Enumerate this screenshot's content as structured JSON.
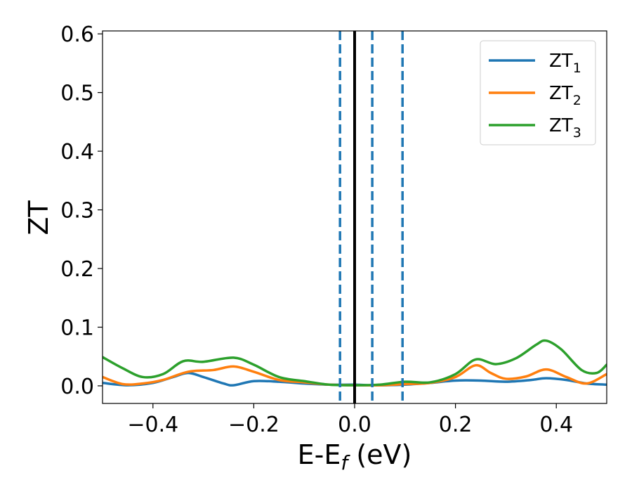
{
  "chart_data": {
    "type": "line",
    "xlabel_main": "E-E",
    "xlabel_sub": "f",
    "xlabel_unit": " (eV)",
    "ylabel": "ZT",
    "xlim": [
      -0.5,
      0.5
    ],
    "ylim": [
      -0.03,
      0.605
    ],
    "x_ticks": [
      -0.4,
      -0.2,
      0.0,
      0.2,
      0.4
    ],
    "x_tick_labels": [
      "−0.4",
      "−0.2",
      "0.0",
      "0.2",
      "0.4"
    ],
    "y_ticks": [
      0.0,
      0.1,
      0.2,
      0.3,
      0.4,
      0.5,
      0.6
    ],
    "y_tick_labels": [
      "0.0",
      "0.1",
      "0.2",
      "0.3",
      "0.4",
      "0.5",
      "0.6"
    ],
    "grid": false,
    "legend_position": "top-right",
    "vertical_lines": [
      {
        "x": 0.0,
        "style": "solid",
        "color": "#000000"
      },
      {
        "x": -0.029,
        "style": "dashed",
        "color": "#1f77b4"
      },
      {
        "x": 0.035,
        "style": "dashed",
        "color": "#1f77b4"
      },
      {
        "x": 0.095,
        "style": "dashed",
        "color": "#1f77b4"
      }
    ],
    "series": [
      {
        "name": "ZT",
        "sub": "1",
        "color": "#1f77b4",
        "x": [
          -0.5,
          -0.45,
          -0.4,
          -0.36,
          -0.33,
          -0.3,
          -0.26,
          -0.24,
          -0.2,
          -0.15,
          -0.1,
          -0.05,
          0.0,
          0.03,
          0.06,
          0.1,
          0.15,
          0.2,
          0.25,
          0.3,
          0.35,
          0.38,
          0.42,
          0.46,
          0.5
        ],
        "y": [
          0.005,
          0.001,
          0.005,
          0.015,
          0.022,
          0.015,
          0.004,
          0.001,
          0.008,
          0.007,
          0.004,
          0.002,
          0.002,
          0.001,
          0.001,
          0.002,
          0.005,
          0.009,
          0.009,
          0.007,
          0.01,
          0.013,
          0.01,
          0.004,
          0.002
        ]
      },
      {
        "name": "ZT",
        "sub": "2",
        "color": "#ff7f0e",
        "x": [
          -0.5,
          -0.46,
          -0.42,
          -0.38,
          -0.33,
          -0.28,
          -0.24,
          -0.2,
          -0.15,
          -0.1,
          -0.05,
          0.0,
          0.05,
          0.1,
          0.15,
          0.2,
          0.24,
          0.27,
          0.3,
          0.34,
          0.38,
          0.42,
          0.46,
          0.5
        ],
        "y": [
          0.015,
          0.003,
          0.004,
          0.01,
          0.024,
          0.027,
          0.033,
          0.024,
          0.01,
          0.006,
          0.002,
          0.001,
          0.001,
          0.003,
          0.005,
          0.015,
          0.035,
          0.022,
          0.012,
          0.016,
          0.028,
          0.015,
          0.004,
          0.02
        ]
      },
      {
        "name": "ZT",
        "sub": "3",
        "color": "#2ca02c",
        "x": [
          -0.5,
          -0.46,
          -0.42,
          -0.38,
          -0.34,
          -0.3,
          -0.24,
          -0.2,
          -0.15,
          -0.1,
          -0.05,
          0.0,
          0.05,
          0.1,
          0.15,
          0.2,
          0.24,
          0.28,
          0.32,
          0.36,
          0.38,
          0.41,
          0.45,
          0.48,
          0.5
        ],
        "y": [
          0.049,
          0.03,
          0.015,
          0.02,
          0.042,
          0.041,
          0.048,
          0.036,
          0.015,
          0.008,
          0.002,
          0.001,
          0.002,
          0.007,
          0.006,
          0.02,
          0.045,
          0.037,
          0.047,
          0.07,
          0.077,
          0.062,
          0.027,
          0.022,
          0.036
        ]
      }
    ]
  }
}
